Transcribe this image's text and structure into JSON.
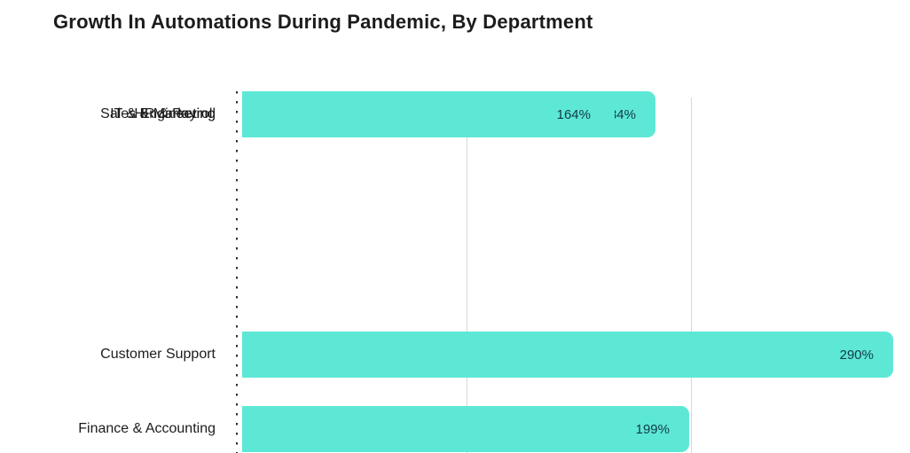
{
  "chart_data": {
    "type": "bar",
    "orientation": "horizontal",
    "title": "Growth In Automations During Pandemic, By Department",
    "categories": [
      "Customer Support",
      "Finance & Accounting",
      "Sales & Marketing",
      "HR & Payroll",
      "IT & Engineering"
    ],
    "values": [
      290,
      199,
      184,
      166,
      164
    ],
    "value_labels": [
      "290%",
      "199%",
      "184%",
      "166%",
      "164%"
    ],
    "unit": "%",
    "xlim": [
      0,
      295
    ],
    "gridline_values": [
      100,
      200
    ],
    "grid": "vertical solid gridlines at 100 and 200, dotted baseline at 0",
    "legend": null,
    "colors": {
      "bar_fill": "#5DE8D6",
      "value_text": "#123A42",
      "category_text": "#1C1C1C",
      "title_text": "#1C1C1C",
      "gridline": "#D8D8D8",
      "axis_dots": "#2E2E2E",
      "background": "#FFFFFF"
    }
  }
}
